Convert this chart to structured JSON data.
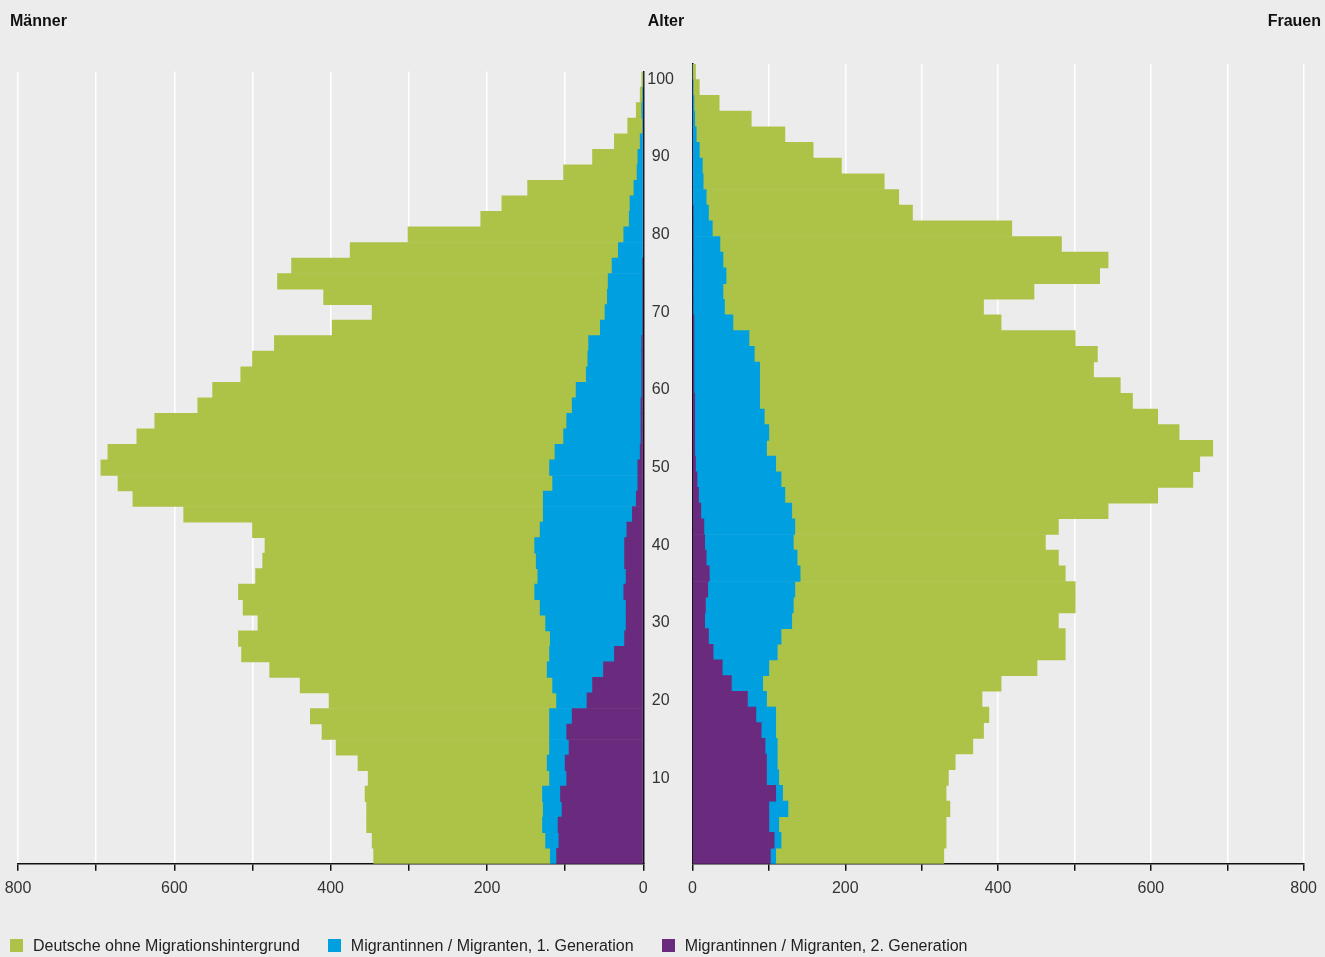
{
  "chart_data": [
    {
      "type": "bar",
      "orientation": "horizontal",
      "stacked": true,
      "title": "Männer",
      "ylabel": "Alter",
      "legend": "bottom",
      "grid": "x",
      "categories": [
        "100",
        null,
        null,
        null,
        null,
        "90",
        null,
        null,
        null,
        null,
        "80",
        null,
        null,
        null,
        null,
        "70",
        null,
        null,
        null,
        null,
        "60",
        null,
        null,
        null,
        null,
        "50",
        null,
        null,
        null,
        null,
        "40",
        null,
        null,
        null,
        null,
        "30",
        null,
        null,
        null,
        null,
        "20",
        null,
        null,
        null,
        null,
        "10",
        null,
        null,
        null,
        null,
        null
      ],
      "xlim": [
        800,
        0
      ],
      "xticks": [
        0,
        {
          "value": 100,
          "label": null
        },
        200,
        {
          "value": 300,
          "label": null
        },
        400,
        {
          "value": 500,
          "label": null
        },
        600,
        {
          "value": 700,
          "label": null
        },
        800
      ],
      "series": [
        {
          "name": "Migrantinnen / Migranten, 2. Generation",
          "color": "#6a2a7e",
          "values": [
            0,
            0,
            0,
            0,
            0,
            0,
            0,
            0,
            0,
            0,
            0,
            0,
            1,
            1,
            1,
            1,
            1,
            2,
            2,
            2,
            2,
            3,
            3,
            3,
            4,
            7,
            7,
            9,
            14,
            21,
            24,
            24,
            22,
            25,
            22,
            22,
            24,
            37,
            51,
            65,
            72,
            91,
            98,
            95,
            100,
            98,
            106,
            104,
            109,
            108,
            111
          ]
        },
        {
          "name": "Migrantinnen / Migranten, 1. Generation",
          "color": "#009fe0",
          "values": [
            0,
            1,
            2,
            1,
            4,
            7,
            8,
            12,
            17,
            18,
            25,
            32,
            39,
            44,
            45,
            48,
            54,
            68,
            69,
            71,
            84,
            88,
            95,
            99,
            109,
            113,
            109,
            119,
            114,
            111,
            115,
            113,
            113,
            114,
            110,
            103,
            95,
            83,
            72,
            51,
            39,
            29,
            22,
            25,
            23,
            22,
            23,
            24,
            20,
            17,
            8
          ]
        },
        {
          "name": "Deutsche ohne Migrationshintergrund",
          "color": "#adc348",
          "values": [
            2,
            3,
            7,
            19,
            33,
            58,
            94,
            136,
            164,
            190,
            276,
            343,
            410,
            423,
            363,
            298,
            343,
            402,
            429,
            442,
            465,
            479,
            527,
            546,
            572,
            574,
            556,
            525,
            460,
            368,
            345,
            350,
            361,
            379,
            380,
            368,
            399,
            394,
            355,
            323,
            291,
            306,
            291,
            273,
            242,
            232,
            227,
            226,
            225,
            222,
            226
          ]
        }
      ]
    },
    {
      "type": "bar",
      "orientation": "horizontal",
      "stacked": true,
      "title": "Frauen",
      "grid": "x",
      "tick_labels": "x",
      "categories": [
        "100",
        null,
        null,
        null,
        null,
        "90",
        null,
        null,
        null,
        null,
        "80",
        null,
        null,
        null,
        null,
        "70",
        null,
        null,
        null,
        null,
        "60",
        null,
        null,
        null,
        null,
        "50",
        null,
        null,
        null,
        null,
        "40",
        null,
        null,
        null,
        null,
        "30",
        null,
        null,
        null,
        null,
        "20",
        null,
        null,
        null,
        null,
        "10",
        null,
        null,
        null,
        null,
        null
      ],
      "xlim": [
        0,
        800
      ],
      "xticks": [
        0,
        {
          "value": 100,
          "label": null
        },
        200,
        {
          "value": 300,
          "label": null
        },
        400,
        {
          "value": 500,
          "label": null
        },
        600,
        {
          "value": 700,
          "label": null
        },
        800
      ],
      "series": [
        {
          "color": "#6a2a7e",
          "values": [
            0,
            0,
            0,
            0,
            0,
            0,
            0,
            0,
            0,
            1,
            1,
            1,
            1,
            1,
            1,
            1,
            2,
            2,
            2,
            2,
            2,
            3,
            3,
            3,
            3,
            4,
            6,
            8,
            11,
            15,
            16,
            18,
            22,
            20,
            17,
            16,
            21,
            27,
            39,
            51,
            72,
            83,
            90,
            95,
            97,
            97,
            109,
            100,
            100,
            107,
            102
          ]
        },
        {
          "color": "#009fe0",
          "values": [
            0,
            1,
            2,
            3,
            5,
            9,
            13,
            14,
            18,
            20,
            25,
            35,
            39,
            43,
            39,
            41,
            51,
            72,
            79,
            86,
            86,
            85,
            91,
            97,
            94,
            105,
            110,
            113,
            119,
            119,
            116,
            119,
            119,
            114,
            115,
            114,
            95,
            84,
            61,
            41,
            25,
            26,
            19,
            16,
            14,
            16,
            9,
            25,
            13,
            9,
            7
          ]
        },
        {
          "color": "#adc348",
          "values": [
            4,
            8,
            33,
            74,
            116,
            149,
            182,
            237,
            252,
            267,
            392,
            447,
            504,
            489,
            407,
            339,
            351,
            427,
            449,
            437,
            472,
            488,
            515,
            537,
            584,
            555,
            539,
            488,
            414,
            345,
            330,
            342,
            347,
            367,
            369,
            349,
            372,
            377,
            351,
            312,
            282,
            279,
            272,
            256,
            233,
            222,
            214,
            212,
            219,
            216,
            220
          ]
        }
      ]
    }
  ]
}
